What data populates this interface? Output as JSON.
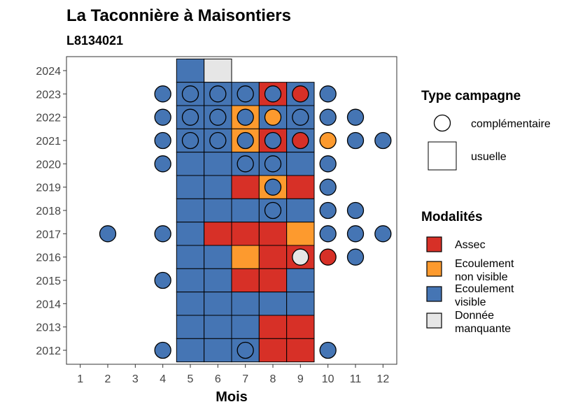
{
  "chart_data": {
    "type": "heatmap",
    "title": "La Taconnière à Maisontiers",
    "subtitle": "L8134021",
    "xlabel": "Mois",
    "ylabel": "",
    "x_ticks": [
      "1",
      "2",
      "3",
      "4",
      "5",
      "6",
      "7",
      "8",
      "9",
      "10",
      "11",
      "12"
    ],
    "y_ticks": [
      "2012",
      "2013",
      "2014",
      "2015",
      "2016",
      "2017",
      "2018",
      "2019",
      "2020",
      "2021",
      "2022",
      "2023",
      "2024"
    ],
    "xlim": [
      0.5,
      12.5
    ],
    "ylim": [
      2011.4,
      2024.6
    ],
    "colors": {
      "Assec": "#d73027",
      "Ecoulement non visible": "#fd9a2e",
      "Ecoulement visible": "#4575b4",
      "Donnée manquante": "#e6e6e6"
    },
    "legend": {
      "shape_title": "Type campagne",
      "shape_items": [
        {
          "label": "complémentaire",
          "shape": "circle"
        },
        {
          "label": "usuelle",
          "shape": "square"
        }
      ],
      "fill_title": "Modalités",
      "fill_items": [
        {
          "key": "Assec",
          "lines": [
            "Assec"
          ]
        },
        {
          "key": "Ecoulement non visible",
          "lines": [
            "Ecoulement",
            "non visible"
          ]
        },
        {
          "key": "Ecoulement visible",
          "lines": [
            "Ecoulement",
            "visible"
          ]
        },
        {
          "key": "Donnée manquante",
          "lines": [
            "Donnée",
            "manquante"
          ]
        }
      ]
    },
    "usuelle": [
      {
        "y": 2024,
        "m": 5,
        "v": "Ecoulement visible"
      },
      {
        "y": 2024,
        "m": 6,
        "v": "Donnée manquante"
      },
      {
        "y": 2023,
        "m": 5,
        "v": "Ecoulement visible"
      },
      {
        "y": 2023,
        "m": 6,
        "v": "Ecoulement visible"
      },
      {
        "y": 2023,
        "m": 7,
        "v": "Ecoulement visible"
      },
      {
        "y": 2023,
        "m": 8,
        "v": "Assec"
      },
      {
        "y": 2023,
        "m": 9,
        "v": "Ecoulement visible"
      },
      {
        "y": 2022,
        "m": 5,
        "v": "Ecoulement visible"
      },
      {
        "y": 2022,
        "m": 6,
        "v": "Ecoulement visible"
      },
      {
        "y": 2022,
        "m": 7,
        "v": "Ecoulement non visible"
      },
      {
        "y": 2022,
        "m": 8,
        "v": "Ecoulement visible"
      },
      {
        "y": 2022,
        "m": 9,
        "v": "Ecoulement visible"
      },
      {
        "y": 2021,
        "m": 5,
        "v": "Ecoulement visible"
      },
      {
        "y": 2021,
        "m": 6,
        "v": "Ecoulement visible"
      },
      {
        "y": 2021,
        "m": 7,
        "v": "Ecoulement non visible"
      },
      {
        "y": 2021,
        "m": 8,
        "v": "Assec"
      },
      {
        "y": 2021,
        "m": 9,
        "v": "Ecoulement visible"
      },
      {
        "y": 2020,
        "m": 5,
        "v": "Ecoulement visible"
      },
      {
        "y": 2020,
        "m": 6,
        "v": "Ecoulement visible"
      },
      {
        "y": 2020,
        "m": 7,
        "v": "Ecoulement visible"
      },
      {
        "y": 2020,
        "m": 8,
        "v": "Ecoulement visible"
      },
      {
        "y": 2020,
        "m": 9,
        "v": "Ecoulement visible"
      },
      {
        "y": 2019,
        "m": 5,
        "v": "Ecoulement visible"
      },
      {
        "y": 2019,
        "m": 6,
        "v": "Ecoulement visible"
      },
      {
        "y": 2019,
        "m": 7,
        "v": "Assec"
      },
      {
        "y": 2019,
        "m": 8,
        "v": "Ecoulement non visible"
      },
      {
        "y": 2019,
        "m": 9,
        "v": "Assec"
      },
      {
        "y": 2018,
        "m": 5,
        "v": "Ecoulement visible"
      },
      {
        "y": 2018,
        "m": 6,
        "v": "Ecoulement visible"
      },
      {
        "y": 2018,
        "m": 7,
        "v": "Ecoulement visible"
      },
      {
        "y": 2018,
        "m": 8,
        "v": "Ecoulement visible"
      },
      {
        "y": 2018,
        "m": 9,
        "v": "Ecoulement visible"
      },
      {
        "y": 2017,
        "m": 5,
        "v": "Ecoulement visible"
      },
      {
        "y": 2017,
        "m": 6,
        "v": "Assec"
      },
      {
        "y": 2017,
        "m": 7,
        "v": "Assec"
      },
      {
        "y": 2017,
        "m": 8,
        "v": "Assec"
      },
      {
        "y": 2017,
        "m": 9,
        "v": "Ecoulement non visible"
      },
      {
        "y": 2016,
        "m": 5,
        "v": "Ecoulement visible"
      },
      {
        "y": 2016,
        "m": 6,
        "v": "Ecoulement visible"
      },
      {
        "y": 2016,
        "m": 7,
        "v": "Ecoulement non visible"
      },
      {
        "y": 2016,
        "m": 8,
        "v": "Assec"
      },
      {
        "y": 2016,
        "m": 9,
        "v": "Assec"
      },
      {
        "y": 2015,
        "m": 5,
        "v": "Ecoulement visible"
      },
      {
        "y": 2015,
        "m": 6,
        "v": "Ecoulement visible"
      },
      {
        "y": 2015,
        "m": 7,
        "v": "Assec"
      },
      {
        "y": 2015,
        "m": 8,
        "v": "Assec"
      },
      {
        "y": 2015,
        "m": 9,
        "v": "Ecoulement visible"
      },
      {
        "y": 2014,
        "m": 5,
        "v": "Ecoulement visible"
      },
      {
        "y": 2014,
        "m": 6,
        "v": "Ecoulement visible"
      },
      {
        "y": 2014,
        "m": 7,
        "v": "Ecoulement visible"
      },
      {
        "y": 2014,
        "m": 8,
        "v": "Ecoulement visible"
      },
      {
        "y": 2014,
        "m": 9,
        "v": "Ecoulement visible"
      },
      {
        "y": 2013,
        "m": 5,
        "v": "Ecoulement visible"
      },
      {
        "y": 2013,
        "m": 6,
        "v": "Ecoulement visible"
      },
      {
        "y": 2013,
        "m": 7,
        "v": "Ecoulement visible"
      },
      {
        "y": 2013,
        "m": 8,
        "v": "Assec"
      },
      {
        "y": 2013,
        "m": 9,
        "v": "Assec"
      },
      {
        "y": 2012,
        "m": 5,
        "v": "Ecoulement visible"
      },
      {
        "y": 2012,
        "m": 6,
        "v": "Ecoulement visible"
      },
      {
        "y": 2012,
        "m": 7,
        "v": "Ecoulement visible"
      },
      {
        "y": 2012,
        "m": 8,
        "v": "Assec"
      },
      {
        "y": 2012,
        "m": 9,
        "v": "Assec"
      }
    ],
    "complementaire": [
      {
        "y": 2023,
        "m": 4,
        "v": "Ecoulement visible"
      },
      {
        "y": 2023,
        "m": 5,
        "v": "Ecoulement visible"
      },
      {
        "y": 2023,
        "m": 6,
        "v": "Ecoulement visible"
      },
      {
        "y": 2023,
        "m": 7,
        "v": "Ecoulement visible"
      },
      {
        "y": 2023,
        "m": 8,
        "v": "Ecoulement visible"
      },
      {
        "y": 2023,
        "m": 9,
        "v": "Assec"
      },
      {
        "y": 2023,
        "m": 10,
        "v": "Ecoulement visible"
      },
      {
        "y": 2022,
        "m": 4,
        "v": "Ecoulement visible"
      },
      {
        "y": 2022,
        "m": 5,
        "v": "Ecoulement visible"
      },
      {
        "y": 2022,
        "m": 6,
        "v": "Ecoulement visible"
      },
      {
        "y": 2022,
        "m": 7,
        "v": "Ecoulement visible"
      },
      {
        "y": 2022,
        "m": 8,
        "v": "Ecoulement non visible"
      },
      {
        "y": 2022,
        "m": 9,
        "v": "Ecoulement visible"
      },
      {
        "y": 2022,
        "m": 10,
        "v": "Ecoulement visible"
      },
      {
        "y": 2022,
        "m": 11,
        "v": "Ecoulement visible"
      },
      {
        "y": 2021,
        "m": 4,
        "v": "Ecoulement visible"
      },
      {
        "y": 2021,
        "m": 5,
        "v": "Ecoulement visible"
      },
      {
        "y": 2021,
        "m": 6,
        "v": "Ecoulement visible"
      },
      {
        "y": 2021,
        "m": 7,
        "v": "Ecoulement visible"
      },
      {
        "y": 2021,
        "m": 8,
        "v": "Ecoulement visible"
      },
      {
        "y": 2021,
        "m": 9,
        "v": "Assec"
      },
      {
        "y": 2021,
        "m": 10,
        "v": "Ecoulement non visible"
      },
      {
        "y": 2021,
        "m": 11,
        "v": "Ecoulement visible"
      },
      {
        "y": 2021,
        "m": 12,
        "v": "Ecoulement visible"
      },
      {
        "y": 2020,
        "m": 4,
        "v": "Ecoulement visible"
      },
      {
        "y": 2020,
        "m": 7,
        "v": "Ecoulement visible"
      },
      {
        "y": 2020,
        "m": 8,
        "v": "Ecoulement visible"
      },
      {
        "y": 2020,
        "m": 10,
        "v": "Ecoulement visible"
      },
      {
        "y": 2019,
        "m": 8,
        "v": "Ecoulement visible"
      },
      {
        "y": 2019,
        "m": 10,
        "v": "Ecoulement visible"
      },
      {
        "y": 2018,
        "m": 8,
        "v": "Ecoulement visible"
      },
      {
        "y": 2018,
        "m": 10,
        "v": "Ecoulement visible"
      },
      {
        "y": 2018,
        "m": 11,
        "v": "Ecoulement visible"
      },
      {
        "y": 2017,
        "m": 2,
        "v": "Ecoulement visible"
      },
      {
        "y": 2017,
        "m": 4,
        "v": "Ecoulement visible"
      },
      {
        "y": 2017,
        "m": 10,
        "v": "Ecoulement visible"
      },
      {
        "y": 2017,
        "m": 11,
        "v": "Ecoulement visible"
      },
      {
        "y": 2017,
        "m": 12,
        "v": "Ecoulement visible"
      },
      {
        "y": 2016,
        "m": 9,
        "v": "Donnée manquante"
      },
      {
        "y": 2016,
        "m": 10,
        "v": "Assec"
      },
      {
        "y": 2016,
        "m": 11,
        "v": "Ecoulement visible"
      },
      {
        "y": 2015,
        "m": 4,
        "v": "Ecoulement visible"
      },
      {
        "y": 2012,
        "m": 4,
        "v": "Ecoulement visible"
      },
      {
        "y": 2012,
        "m": 7,
        "v": "Ecoulement visible"
      },
      {
        "y": 2012,
        "m": 10,
        "v": "Ecoulement visible"
      }
    ]
  }
}
